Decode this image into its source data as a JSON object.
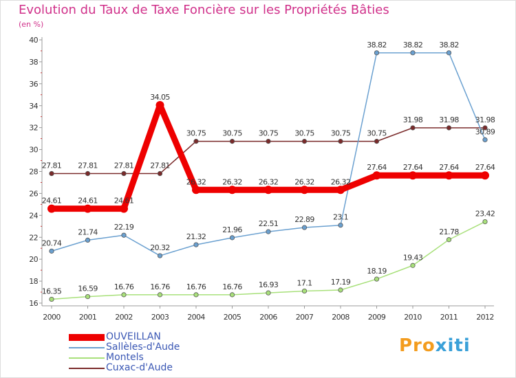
{
  "title": "Evolution du Taux de Taxe Foncière sur les Propriétés Bâties",
  "subtitle": "(en %)",
  "logo": {
    "part1": "Pro",
    "part2": "xiti"
  },
  "chart_data": {
    "type": "line",
    "title": "Evolution du Taux de Taxe Foncière sur les Propriétés Bâties",
    "ylabel": "(en %)",
    "xlabel": "",
    "x": [
      "2000",
      "2001",
      "2002",
      "2003",
      "2004",
      "2005",
      "2006",
      "2007",
      "2008",
      "2009",
      "2010",
      "2011",
      "2012"
    ],
    "ylim": [
      16,
      40
    ],
    "yticks": [
      16,
      18,
      20,
      22,
      24,
      26,
      28,
      30,
      32,
      34,
      36,
      38,
      40
    ],
    "grid": false,
    "legend_position": "bottom-left",
    "series": [
      {
        "name": "OUVEILLAN",
        "color": "#ee0000",
        "width": "thick",
        "values": [
          24.61,
          24.61,
          24.61,
          34.05,
          26.32,
          26.32,
          26.32,
          26.32,
          26.32,
          27.64,
          27.64,
          27.64,
          27.64
        ],
        "labels": [
          "24.61",
          "24.61",
          "24.61",
          "34.05",
          "26.32",
          "26.32",
          "26.32",
          "26.32",
          "26.32",
          "27.64",
          "27.64",
          "27.64",
          "27.64"
        ]
      },
      {
        "name": "Sallèles-d'Aude",
        "color": "#6aa0d0",
        "width": "thin",
        "values": [
          20.74,
          21.74,
          22.19,
          20.32,
          21.32,
          21.96,
          22.51,
          22.89,
          23.1,
          38.82,
          38.82,
          38.82,
          30.89
        ],
        "labels": [
          "20.74",
          "21.74",
          "22.19",
          "20.32",
          "21.32",
          "21.96",
          "22.51",
          "22.89",
          "23.1",
          "38.82",
          "38.82",
          "38.82",
          "30.89"
        ]
      },
      {
        "name": "Montels",
        "color": "#a8e07a",
        "width": "thin",
        "values": [
          16.35,
          16.59,
          16.76,
          16.76,
          16.76,
          16.76,
          16.93,
          17.1,
          17.19,
          18.19,
          19.43,
          21.78,
          23.42
        ],
        "labels": [
          "16.35",
          "16.59",
          "16.76",
          "16.76",
          "16.76",
          "16.76",
          "16.93",
          "17.1",
          "17.19",
          "18.19",
          "19.43",
          "21.78",
          "23.42"
        ]
      },
      {
        "name": "Cuxac-d'Aude",
        "color": "#7a2a2a",
        "width": "thin",
        "values": [
          27.81,
          27.81,
          27.81,
          27.81,
          30.75,
          30.75,
          30.75,
          30.75,
          30.75,
          30.75,
          31.98,
          31.98,
          31.98
        ],
        "labels": [
          "27.81",
          "27.81",
          "27.81",
          "27.81",
          "30.75",
          "30.75",
          "30.75",
          "30.75",
          "30.75",
          "30.75",
          "31.98",
          "31.98",
          "31.98"
        ]
      }
    ]
  }
}
